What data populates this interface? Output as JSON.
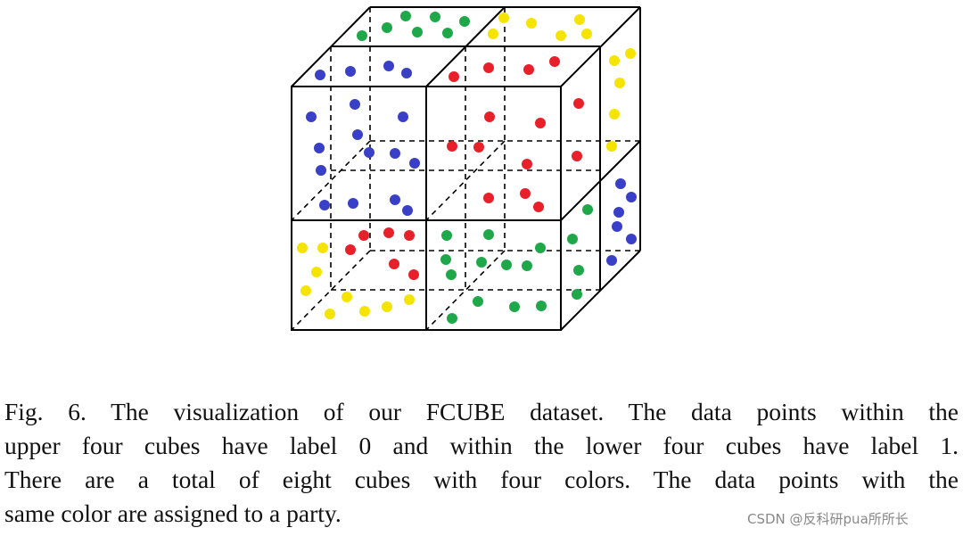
{
  "caption": {
    "lines": [
      "Fig. 6.  The visualization of our FCUBE dataset. The data points within the",
      "upper four cubes have label 0 and within the lower four cubes have label 1.",
      "There are a total of eight cubes with four colors. The data points with the",
      "same color are assigned to a party."
    ]
  },
  "watermark": "CSDN @反科研pua所所长"
}
